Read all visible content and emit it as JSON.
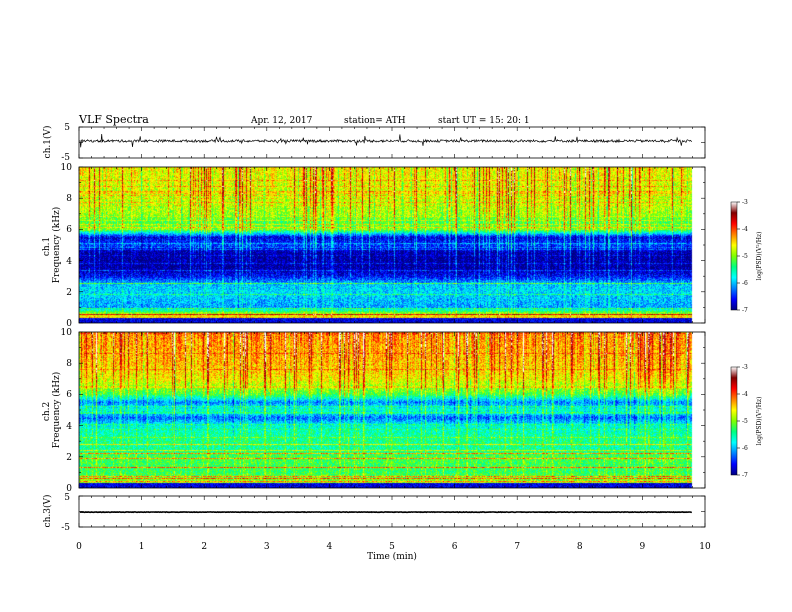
{
  "header": {
    "title": "VLF Spectra",
    "date": "Apr. 12, 2017",
    "station": "station= ATH",
    "start": "start  UT  =    15: 20: 1"
  },
  "colorbar": {
    "label": "log(PSD)(V²/Hz)",
    "ticks": [
      "-3",
      "-4",
      "-5",
      "-6",
      "-7"
    ]
  },
  "chart_data": [
    {
      "type": "line",
      "panel": "ch1-waveform",
      "ylabel": "ch.1(V)",
      "ylim": [
        -5,
        5
      ],
      "ytick_labels": [
        "5",
        "-5"
      ],
      "xlim": [
        0,
        10
      ],
      "trace_level": 0.5,
      "trace_noise": 0.8,
      "trace_end": 9.8,
      "color": "#000000"
    },
    {
      "type": "heatmap",
      "panel": "ch1-spectrogram",
      "ylabel": "ch.1\nFrequency (kHz)",
      "ylim": [
        0,
        10
      ],
      "ytick_labels": [
        "0",
        "2",
        "4",
        "6",
        "8",
        "10"
      ],
      "xlim": [
        0,
        10
      ],
      "data_end": 9.8,
      "zlim": [
        -7,
        -3
      ],
      "colormap": [
        "#000080",
        "#0000ff",
        "#0080ff",
        "#00ffff",
        "#00ff80",
        "#80ff00",
        "#ffff00",
        "#ff8000",
        "#ff0000",
        "#800000",
        "#ffffff"
      ],
      "psd_profile_khz": [
        [
          0,
          -4.2
        ],
        [
          0.5,
          -4.6
        ],
        [
          1,
          -6.1
        ],
        [
          2,
          -5.9
        ],
        [
          2.5,
          -6.0
        ],
        [
          3,
          -6.6
        ],
        [
          3.5,
          -6.9
        ],
        [
          4.5,
          -6.9
        ],
        [
          5,
          -6.4
        ],
        [
          5.5,
          -6.7
        ],
        [
          6,
          -5.0
        ],
        [
          6.5,
          -5.2
        ],
        [
          7,
          -4.9
        ],
        [
          8,
          -4.8
        ],
        [
          9,
          -4.7
        ],
        [
          10,
          -4.6
        ]
      ]
    },
    {
      "type": "heatmap",
      "panel": "ch2-spectrogram",
      "ylabel": "ch.2\nFrequency (kHz)",
      "ylim": [
        0,
        10
      ],
      "ytick_labels": [
        "0",
        "2",
        "4",
        "6",
        "8",
        "10"
      ],
      "xlim": [
        0,
        10
      ],
      "data_end": 9.8,
      "zlim": [
        -7,
        -3
      ],
      "colormap": [
        "#000080",
        "#0000ff",
        "#0080ff",
        "#00ffff",
        "#00ff80",
        "#80ff00",
        "#ffff00",
        "#ff8000",
        "#ff0000",
        "#800000",
        "#ffffff"
      ],
      "psd_profile_khz": [
        [
          0,
          -4.6
        ],
        [
          0.5,
          -5.0
        ],
        [
          1,
          -5.3
        ],
        [
          2,
          -5.2
        ],
        [
          2.5,
          -5.5
        ],
        [
          3,
          -5.4
        ],
        [
          4,
          -5.7
        ],
        [
          4.5,
          -6.3
        ],
        [
          5,
          -5.6
        ],
        [
          5.5,
          -6.2
        ],
        [
          6,
          -5.2
        ],
        [
          6.5,
          -4.9
        ],
        [
          7,
          -4.6
        ],
        [
          8,
          -4.4
        ],
        [
          9,
          -4.3
        ],
        [
          10,
          -4.2
        ]
      ]
    },
    {
      "type": "line",
      "panel": "ch3-waveform",
      "ylabel": "ch.3(V)",
      "ylim": [
        -5,
        5
      ],
      "ytick_labels": [
        "5",
        "-5"
      ],
      "xlim": [
        0,
        10
      ],
      "trace_level": -0.2,
      "trace_noise": 0.15,
      "trace_end": 9.8,
      "color": "#000000"
    }
  ],
  "xaxis": {
    "label": "Time  (min)",
    "ticks": [
      "0",
      "1",
      "2",
      "3",
      "4",
      "5",
      "6",
      "7",
      "8",
      "9",
      "10"
    ]
  }
}
